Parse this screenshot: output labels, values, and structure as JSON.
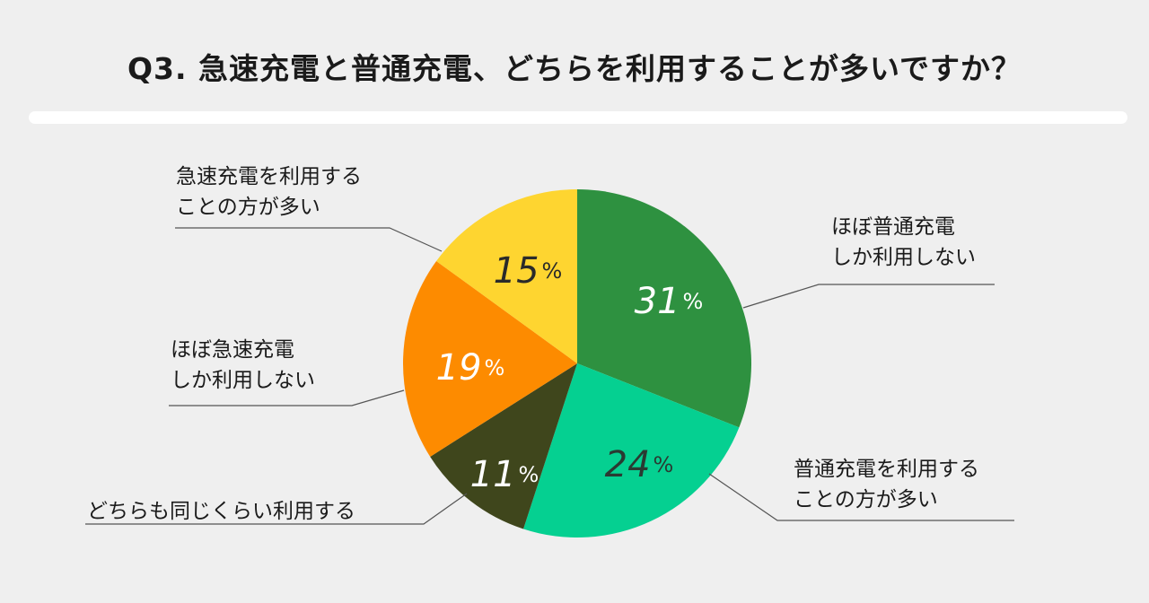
{
  "chart_data": {
    "type": "pie",
    "title": "Q3. 急速充電と普通充電、どちらを利用することが多いですか？",
    "percent_suffix": "%",
    "slices": [
      {
        "lines": [
          "ほぼ普通充電",
          "しか利用しない"
        ],
        "value": 31,
        "color": "#2e9140",
        "label_color": "#ffffff"
      },
      {
        "lines": [
          "普通充電を利用する",
          "ことの方が多い"
        ],
        "value": 24,
        "color": "#05d091",
        "label_color": "#2a3a32"
      },
      {
        "lines": [
          "どちらも同じくらい利用する"
        ],
        "value": 11,
        "color": "#3f461c",
        "label_color": "#ffffff"
      },
      {
        "lines": [
          "ほぼ急速充電",
          "しか利用しない"
        ],
        "value": 19,
        "color": "#fd8b00",
        "label_color": "#ffffff"
      },
      {
        "lines": [
          "急速充電を利用する",
          "ことの方が多い"
        ],
        "value": 15,
        "color": "#fed530",
        "label_color": "#2a2a2a"
      }
    ]
  }
}
